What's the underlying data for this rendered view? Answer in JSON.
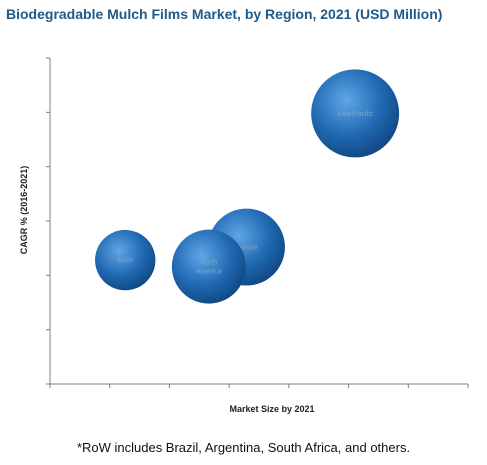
{
  "chart_data": {
    "type": "bubble",
    "title": "Biodegradable Mulch Films Market, by Region, 2021 (USD Million)",
    "xlabel": "Market Size by 2021",
    "ylabel": "CAGR % (2016-2021)",
    "xlim": [
      0,
      100
    ],
    "ylim": [
      0,
      100
    ],
    "x_ticks_shown": false,
    "y_ticks_shown": false,
    "grid": false,
    "bubble_color": "#1f68b0",
    "series": [
      {
        "label": "RoW",
        "x": 18,
        "y": 38,
        "size": 8
      },
      {
        "label": "North America",
        "x": 38,
        "y": 36,
        "size": 12
      },
      {
        "label": "Europe",
        "x": 47,
        "y": 42,
        "size": 13
      },
      {
        "label": "Asia-Pacific",
        "x": 73,
        "y": 83,
        "size": 17
      }
    ]
  },
  "footnote": "*RoW includes Brazil, Argentina, South Africa, and others."
}
